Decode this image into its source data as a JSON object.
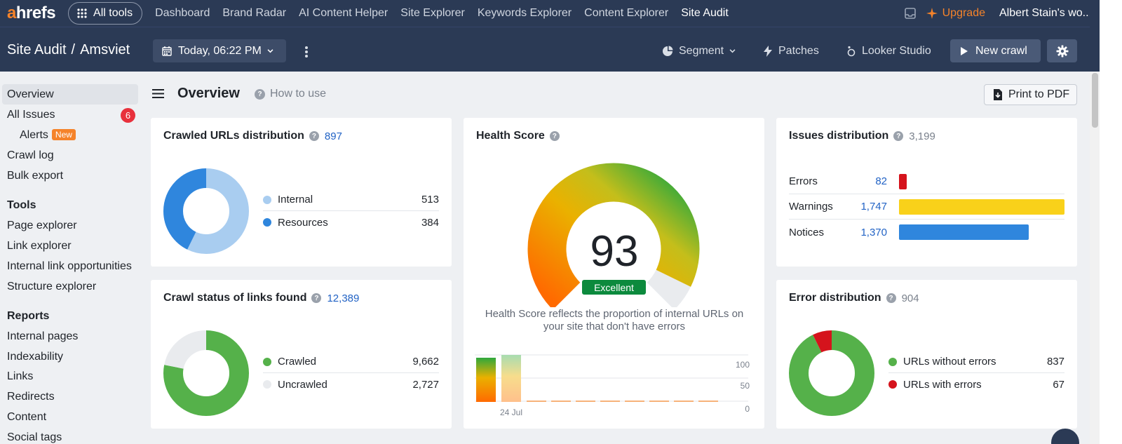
{
  "nav": {
    "logo_a": "a",
    "logo_rest": "hrefs",
    "all_tools": "All tools",
    "links": [
      "Dashboard",
      "Brand Radar",
      "AI Content Helper",
      "Site Explorer",
      "Keywords Explorer",
      "Content Explorer",
      "Site Audit"
    ],
    "active_link": "Site Audit",
    "upgrade": "Upgrade",
    "account": "Albert Stain's wo..."
  },
  "subbar": {
    "crumb_root": "Site Audit",
    "crumb_sep": "/",
    "crumb_project": "Amsviet",
    "date": "Today, 06:22 PM",
    "segment": "Segment",
    "patches": "Patches",
    "looker": "Looker Studio",
    "new_crawl": "New crawl"
  },
  "sidebar": {
    "overview": "Overview",
    "all_issues": "All Issues",
    "all_issues_badge": "6",
    "alerts": "Alerts",
    "alerts_badge": "New",
    "crawl_log": "Crawl log",
    "bulk_export": "Bulk export",
    "tools_head": "Tools",
    "tools": [
      "Page explorer",
      "Link explorer",
      "Internal link opportunities",
      "Structure explorer"
    ],
    "reports_head": "Reports",
    "reports": [
      "Internal pages",
      "Indexability",
      "Links",
      "Redirects",
      "Content",
      "Social tags"
    ]
  },
  "main": {
    "title": "Overview",
    "how_to": "How to use",
    "print": "Print to PDF"
  },
  "colors": {
    "internal": "#a9cdf0",
    "resources": "#2f86dd",
    "crawled": "#55b14a",
    "uncrawled": "#e9ebee",
    "errors": "#d5131c",
    "warnings": "#f9d11a",
    "notices": "#2f86dd"
  },
  "crawled_urls": {
    "title": "Crawled URLs distribution",
    "total": "897",
    "items": [
      {
        "label": "Internal",
        "value": "513",
        "num": 513
      },
      {
        "label": "Resources",
        "value": "384",
        "num": 384
      }
    ]
  },
  "health": {
    "title": "Health Score",
    "score": "93",
    "score_num": 93,
    "rating": "Excellent",
    "description": "Health Score reflects the proportion of internal URLs on your site that don't have errors",
    "history_label": "24 Jul",
    "y_ticks": [
      "100",
      "50",
      "0"
    ]
  },
  "issues": {
    "title": "Issues distribution",
    "total": "3,199",
    "rows": [
      {
        "label": "Errors",
        "value": "82",
        "num": 82
      },
      {
        "label": "Warnings",
        "value": "1,747",
        "num": 1747
      },
      {
        "label": "Notices",
        "value": "1,370",
        "num": 1370
      }
    ]
  },
  "crawl_status": {
    "title": "Crawl status of links found",
    "total": "12,389",
    "items": [
      {
        "label": "Crawled",
        "value": "9,662",
        "num": 9662
      },
      {
        "label": "Uncrawled",
        "value": "2,727",
        "num": 2727
      }
    ]
  },
  "errors_dist": {
    "title": "Error distribution",
    "total": "904",
    "items": [
      {
        "label": "URLs without errors",
        "value": "837",
        "num": 837
      },
      {
        "label": "URLs with errors",
        "value": "67",
        "num": 67
      }
    ]
  }
}
